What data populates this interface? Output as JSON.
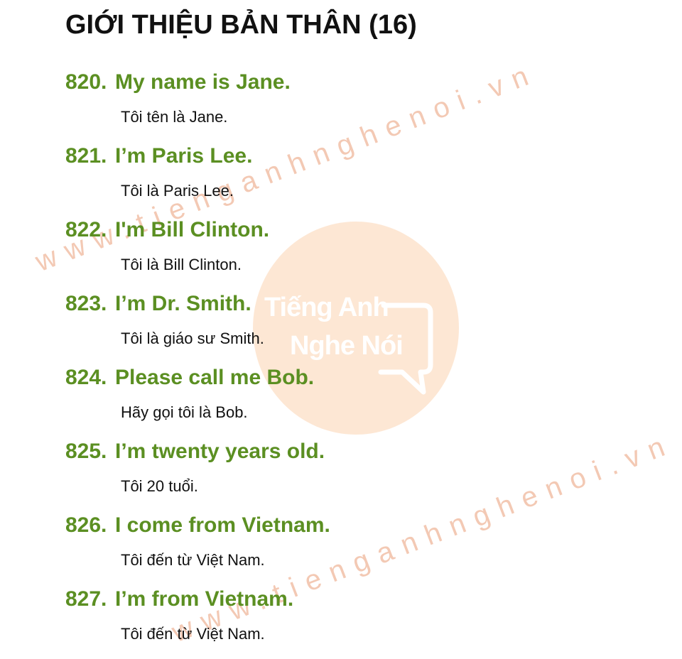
{
  "title": "GIỚI THIỆU BẢN THÂN (16)",
  "watermark": {
    "url": "www.tienganhnghenoi.vn",
    "logo_line1": "Tiếng Anh",
    "logo_line2": "Nghe Nói",
    "circle_color": "#fde4cf"
  },
  "colors": {
    "phrase": "#5b8f22",
    "title": "#111111"
  },
  "entries": [
    {
      "number": "820.",
      "phrase": "My name is Jane.",
      "translation": "Tôi tên là Jane."
    },
    {
      "number": "821.",
      "phrase": "I’m Paris Lee.",
      "translation": "Tôi là Paris Lee."
    },
    {
      "number": "822.",
      "phrase": "I'm Bill Clinton.",
      "translation": "Tôi là Bill Clinton."
    },
    {
      "number": "823.",
      "phrase": "I’m Dr. Smith.",
      "translation": "Tôi là giáo sư Smith."
    },
    {
      "number": "824.",
      "phrase": "Please call me Bob.",
      "translation": "Hãy gọi tôi là Bob."
    },
    {
      "number": "825.",
      "phrase": "I’m twenty years old.",
      "translation": "Tôi 20 tuổi."
    },
    {
      "number": "826.",
      "phrase": "I come from Vietnam.",
      "translation": "Tôi đến từ Việt Nam."
    },
    {
      "number": "827.",
      "phrase": "I’m from Vietnam.",
      "translation": "Tôi đến từ Việt Nam."
    }
  ]
}
